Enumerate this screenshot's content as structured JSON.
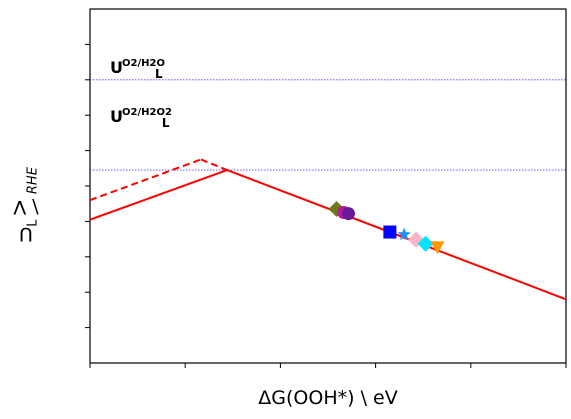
{
  "chart_data": {
    "type": "line",
    "title": "",
    "xlabel": "ΔG(OOH*) \\ eV",
    "ylabel_main": "U",
    "ylabel_sub": "L",
    "ylabel_sep": " \\ V",
    "ylabel_unit": "RHE",
    "xlim": [
      0,
      10
    ],
    "ylim": [
      0,
      10
    ],
    "xticks": [
      0,
      2,
      4,
      6,
      8,
      10
    ],
    "yticks": [
      1,
      2,
      3,
      4,
      5,
      6,
      7,
      8,
      9
    ],
    "show_tick_labels": false,
    "grid": false,
    "reference_lines": [
      {
        "label_main": "U",
        "label_sub": "L",
        "label_sup": "O2/H2O",
        "y": 8.0,
        "color": "#4040ff",
        "style": "dotted"
      },
      {
        "label_main": "U",
        "label_sub": "L",
        "label_sup": "O2/H2O2",
        "y": 5.45,
        "color": "#4040ff",
        "style": "dotted"
      }
    ],
    "series": [
      {
        "x": [
          0,
          2.88,
          10
        ],
        "y": [
          4.05,
          5.45,
          1.8
        ],
        "color": "#ff0000",
        "style": "solid"
      },
      {
        "x": [
          0,
          2.33
        ],
        "y": [
          4.6,
          5.75
        ],
        "color": "#ff0000",
        "style": "dashed"
      },
      {
        "x": [
          2.33,
          2.88
        ],
        "y": [
          5.75,
          5.45
        ],
        "color": "#ff0000",
        "style": "dashed"
      }
    ],
    "points": [
      {
        "x": 5.18,
        "y": 4.35,
        "marker": "diamond",
        "color": "#6e7a1a"
      },
      {
        "x": 5.33,
        "y": 4.25,
        "marker": "circle",
        "color": "#b5179e"
      },
      {
        "x": 5.43,
        "y": 4.22,
        "marker": "circle",
        "color": "#6a1b9a"
      },
      {
        "x": 6.3,
        "y": 3.7,
        "marker": "square",
        "color": "#0000ff"
      },
      {
        "x": 6.6,
        "y": 3.63,
        "marker": "star",
        "color": "#1e90ff"
      },
      {
        "x": 6.85,
        "y": 3.48,
        "marker": "diamond",
        "color": "#ffb3c6"
      },
      {
        "x": 7.05,
        "y": 3.37,
        "marker": "diamond",
        "color": "#00e5ff"
      },
      {
        "x": 7.3,
        "y": 3.27,
        "marker": "triangle-down",
        "color": "#ff9900"
      }
    ]
  }
}
